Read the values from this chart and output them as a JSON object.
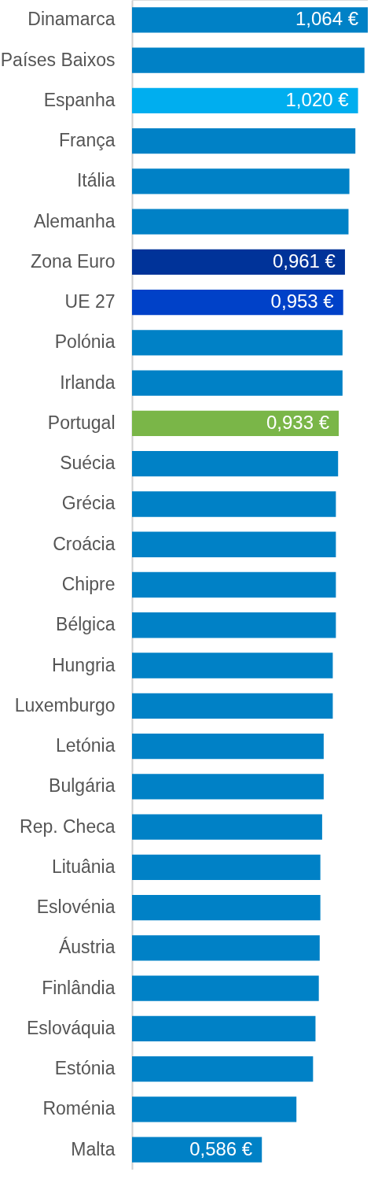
{
  "chart_data": {
    "type": "bar",
    "orientation": "horizontal",
    "categories": [
      "Dinamarca",
      "Países Baixos",
      "Espanha",
      "França",
      "Itália",
      "Alemanha",
      "Zona Euro",
      "UE 27",
      "Polónia",
      "Irlanda",
      "Portugal",
      "Suécia",
      "Grécia",
      "Croácia",
      "Chipre",
      "Bélgica",
      "Hungria",
      "Luxemburgo",
      "Letónia",
      "Bulgária",
      "Rep. Checa",
      "Lituânia",
      "Eslovénia",
      "Áustria",
      "Finlândia",
      "Eslováquia",
      "Estónia",
      "Roménia",
      "Malta"
    ],
    "values": [
      1.064,
      1.049,
      1.02,
      1.008,
      0.981,
      0.977,
      0.961,
      0.953,
      0.95,
      0.95,
      0.933,
      0.93,
      0.92,
      0.92,
      0.92,
      0.92,
      0.906,
      0.906,
      0.865,
      0.865,
      0.858,
      0.85,
      0.85,
      0.847,
      0.843,
      0.828,
      0.817,
      0.742,
      0.586
    ],
    "value_labels": [
      "1,064 €",
      null,
      "1,020 €",
      null,
      null,
      null,
      "0,961 €",
      "0,953 €",
      null,
      null,
      "0,933 €",
      null,
      null,
      null,
      null,
      null,
      null,
      null,
      null,
      null,
      null,
      null,
      null,
      null,
      null,
      null,
      null,
      null,
      "0,586 €"
    ],
    "colors": [
      "#0081c6",
      "#0081c6",
      "#00aeef",
      "#0081c6",
      "#0081c6",
      "#0081c6",
      "#003399",
      "#0041c8",
      "#0081c6",
      "#0081c6",
      "#7ab648",
      "#0081c6",
      "#0081c6",
      "#0081c6",
      "#0081c6",
      "#0081c6",
      "#0081c6",
      "#0081c6",
      "#0081c6",
      "#0081c6",
      "#0081c6",
      "#0081c6",
      "#0081c6",
      "#0081c6",
      "#0081c6",
      "#0081c6",
      "#0081c6",
      "#0081c6",
      "#0081c6"
    ],
    "data_labels": false
  }
}
